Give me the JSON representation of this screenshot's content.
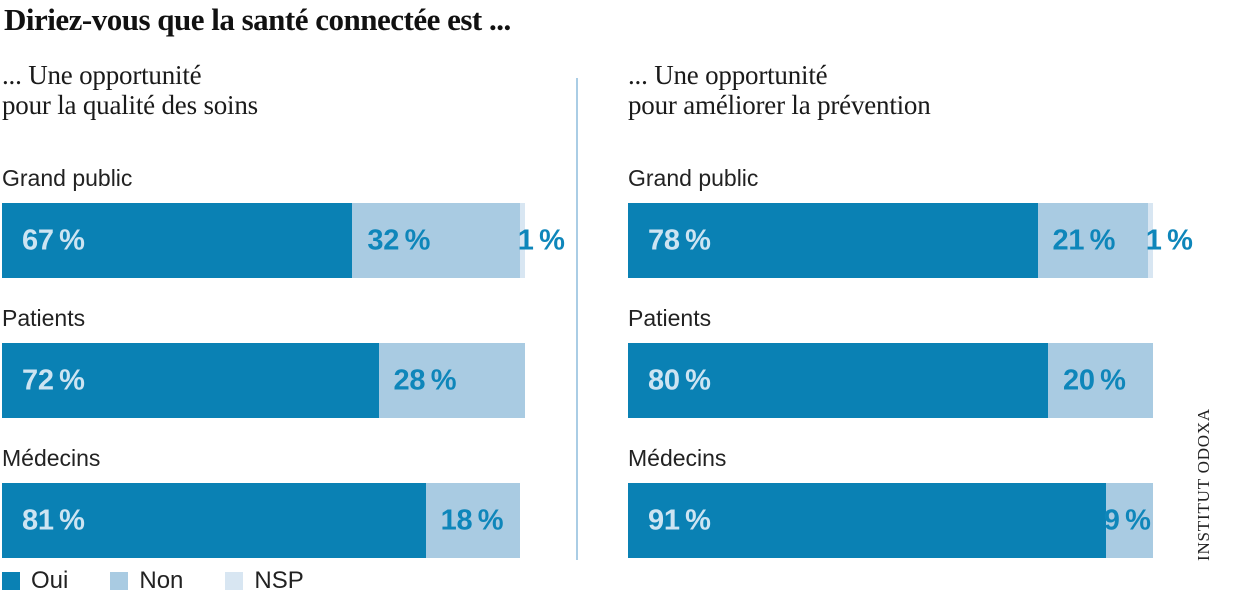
{
  "title": "Diriez-vous que la santé connectée est ...",
  "credit": "INSTITUT ODOXA",
  "colors": {
    "oui": "#0a81b4",
    "non": "#a9cbe2",
    "nsp": "#d8e6f2",
    "label_on_dark": "#cde4f2",
    "label_on_light": "#0e86ba",
    "divider": "#aacde5",
    "text": "#1a1a1a"
  },
  "chart_data": {
    "type": "bar",
    "orientation": "horizontal",
    "stacked": true,
    "value_unit": "%",
    "title": "Diriez-vous que la santé connectée est ...",
    "legend_position": "bottom-left",
    "series_names": [
      "Oui",
      "Non",
      "NSP"
    ],
    "series_colors": {
      "Oui": "#0a81b4",
      "Non": "#a9cbe2",
      "NSP": "#d8e6f2"
    },
    "xlim": [
      0,
      100
    ],
    "panels": [
      {
        "id": "qualite-soins",
        "subtitle": [
          "... Une opportunité",
          "pour la qualité des soins"
        ],
        "categories": [
          "Grand public",
          "Patients",
          "Médecins"
        ],
        "series": [
          {
            "name": "Oui",
            "values": [
              67,
              72,
              81
            ]
          },
          {
            "name": "Non",
            "values": [
              32,
              28,
              18
            ]
          },
          {
            "name": "NSP",
            "values": [
              1,
              null,
              null
            ]
          }
        ]
      },
      {
        "id": "prevention",
        "subtitle": [
          "... Une opportunité",
          "pour améliorer la prévention"
        ],
        "categories": [
          "Grand public",
          "Patients",
          "Médecins"
        ],
        "series": [
          {
            "name": "Oui",
            "values": [
              78,
              80,
              91
            ]
          },
          {
            "name": "Non",
            "values": [
              21,
              20,
              9
            ]
          },
          {
            "name": "NSP",
            "values": [
              1,
              null,
              null
            ]
          }
        ]
      }
    ],
    "source": "INSTITUT ODOXA"
  }
}
